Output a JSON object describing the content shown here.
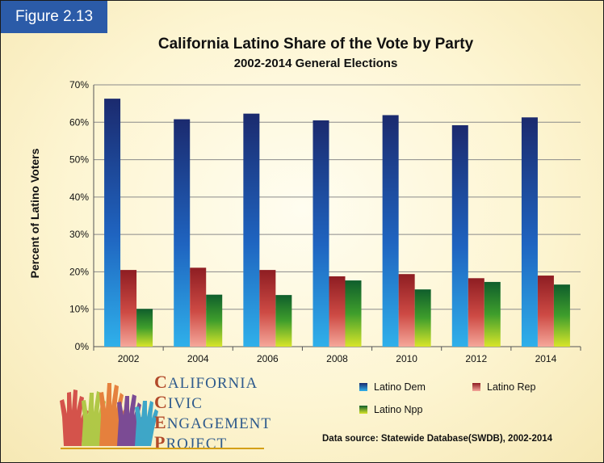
{
  "figure_label": "Figure 2.13",
  "chart_data": {
    "type": "bar",
    "title": "California Latino Share of the Vote by Party",
    "subtitle": "2002-2014 General Elections",
    "ylabel": "Percent of Latino Voters",
    "xlabel": "",
    "ylim": [
      0,
      70
    ],
    "yticks": [
      "0%",
      "10%",
      "20%",
      "30%",
      "40%",
      "50%",
      "60%",
      "70%"
    ],
    "categories": [
      "2002",
      "2004",
      "2006",
      "2008",
      "2010",
      "2012",
      "2014"
    ],
    "grid": true,
    "legend_position": "bottom-right",
    "series": [
      {
        "name": "Latino Dem",
        "values": [
          66.3,
          60.8,
          62.3,
          60.5,
          61.9,
          59.2,
          61.3
        ],
        "color": "#2f7fcf"
      },
      {
        "name": "Latino Rep",
        "values": [
          20.5,
          21.1,
          20.5,
          18.8,
          19.4,
          18.3,
          19.0
        ],
        "color": "#c94a3c"
      },
      {
        "name": "Latino Npp",
        "values": [
          10.1,
          13.9,
          13.8,
          17.7,
          15.3,
          17.3,
          16.6
        ],
        "color": "#5aa630"
      }
    ]
  },
  "logo": {
    "line1_cap": "C",
    "line1_rest": "ALIFORNIA",
    "line2_cap": "C",
    "line2_rest": "IVIC",
    "line3_cap": "E",
    "line3_rest": "NGAGEMENT",
    "line4_cap": "P",
    "line4_rest": "ROJECT"
  },
  "source": "Data source: Statewide Database(SWDB), 2002-2014"
}
